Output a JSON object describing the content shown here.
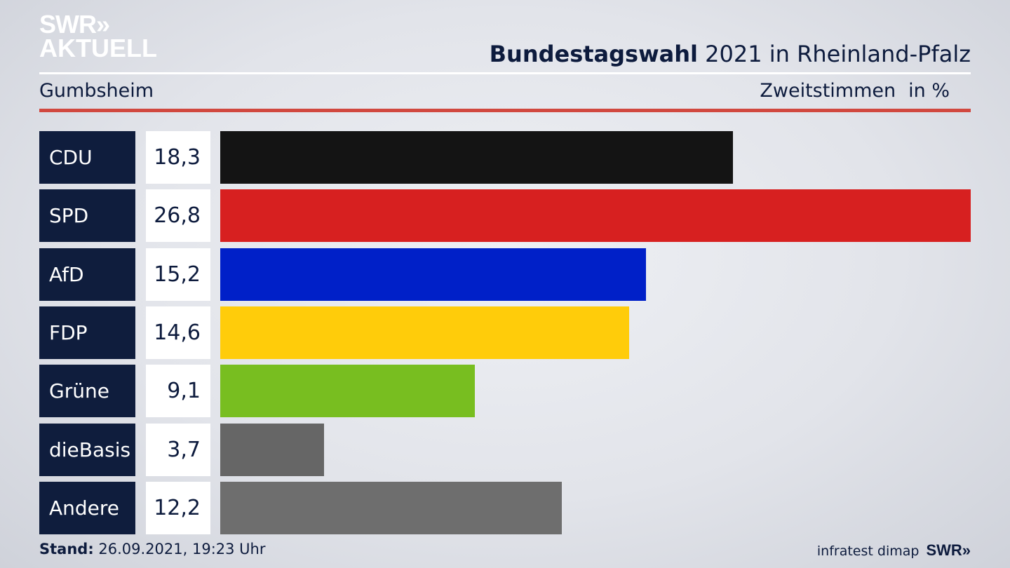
{
  "brand": {
    "line1": "SWR»",
    "line2": "AKTUELL"
  },
  "header": {
    "title_bold": "Bundestagswahl",
    "title_rest": " 2021 in Rheinland-Pfalz",
    "location": "Gumbsheim",
    "measure": "Zweitstimmen",
    "unit": "in %"
  },
  "footer": {
    "stand_label": "Stand:",
    "stand_value": " 26.09.2021, 19:23 Uhr",
    "source": "infratest dimap",
    "logo": "SWR»"
  },
  "chart_data": {
    "type": "bar",
    "orientation": "horizontal",
    "title": "Bundestagswahl 2021 in Rheinland-Pfalz",
    "subtitle": "Gumbsheim",
    "ylabel": "Zweitstimmen in %",
    "categories": [
      "CDU",
      "SPD",
      "AfD",
      "FDP",
      "Grüne",
      "dieBasis",
      "Andere"
    ],
    "value_labels": [
      "18,3",
      "26,8",
      "15,2",
      "14,6",
      "9,1",
      "3,7",
      "12,2"
    ],
    "values": [
      18.3,
      26.8,
      15.2,
      14.6,
      9.1,
      3.7,
      12.2
    ],
    "colors": [
      "#141414",
      "#d72020",
      "#0020c8",
      "#ffcc0a",
      "#78be20",
      "#666666",
      "#6e6e6e"
    ],
    "xlim": [
      0,
      26.8
    ],
    "grid": false,
    "legend": "none"
  }
}
